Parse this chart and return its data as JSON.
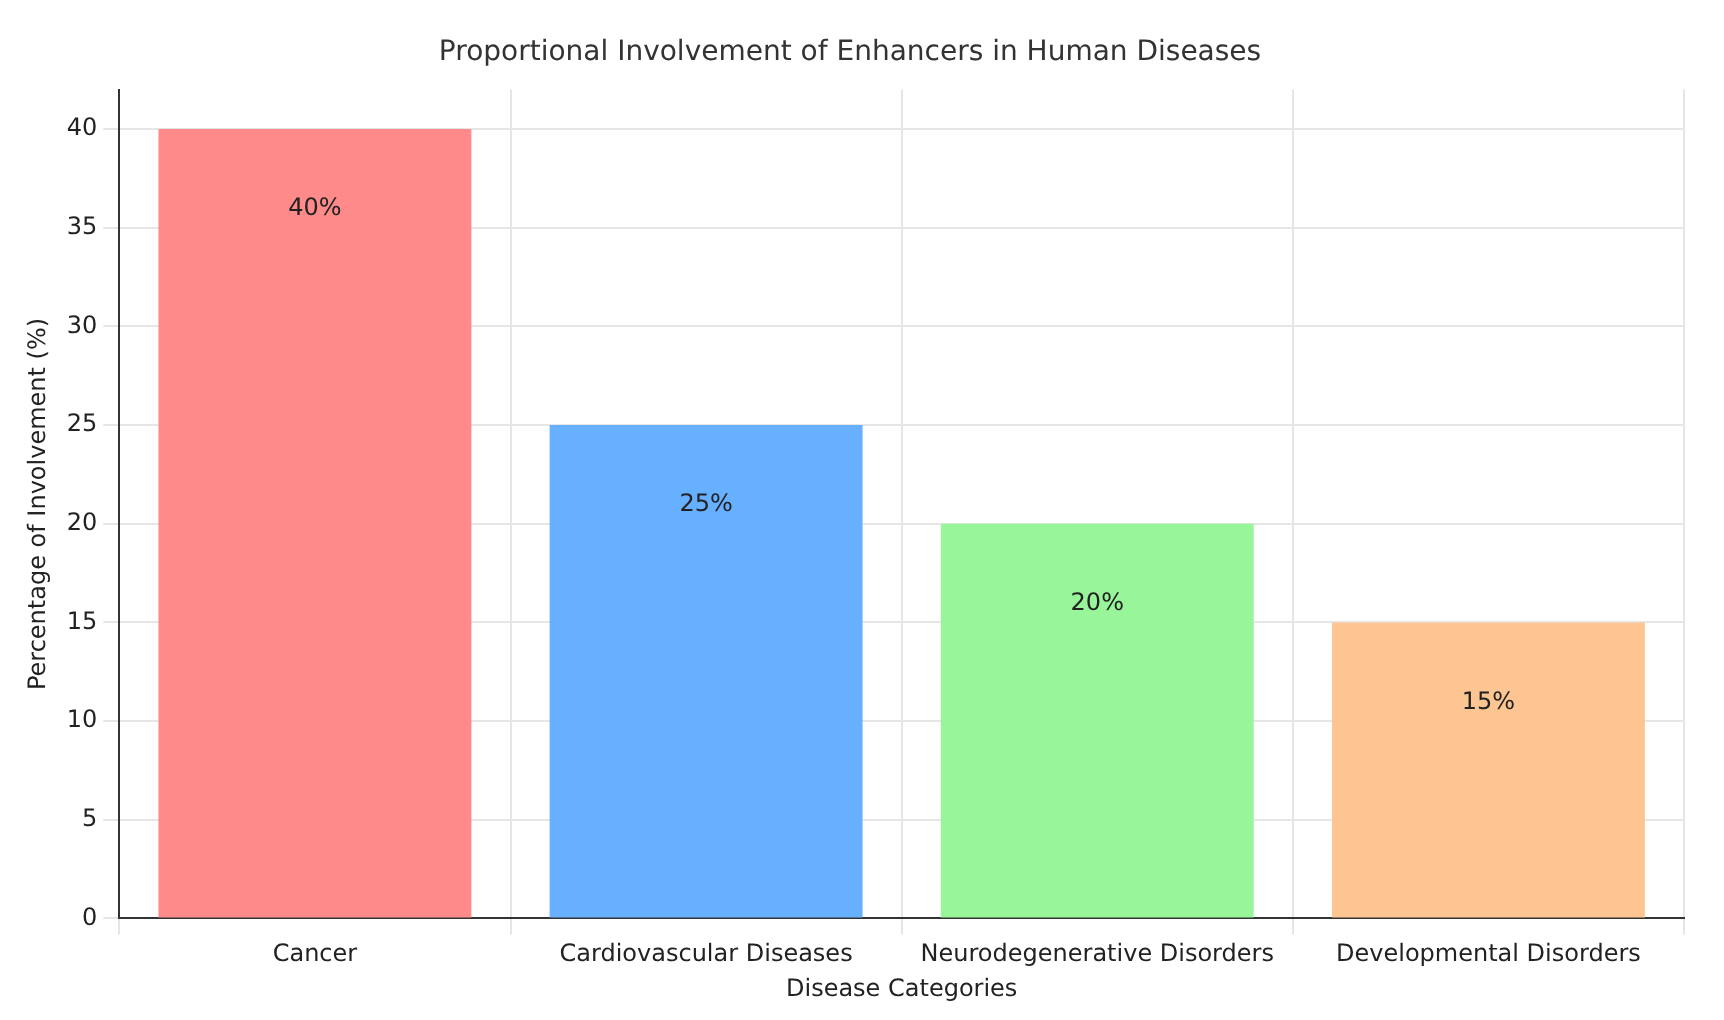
{
  "chart_data": {
    "type": "bar",
    "title": "Proportional Involvement of Enhancers in Human Diseases",
    "xlabel": "Disease Categories",
    "ylabel": "Percentage of Involvement (%)",
    "categories": [
      "Cancer",
      "Cardiovascular Diseases",
      "Neurodegenerative Disorders",
      "Developmental Disorders"
    ],
    "values": [
      40,
      25,
      20,
      15
    ],
    "colors": [
      "#ff8a8a",
      "#66b0ff",
      "#99f599",
      "#fcc591"
    ],
    "value_labels": [
      "40%",
      "25%",
      "20%",
      "15%"
    ],
    "ylim": [
      0,
      42
    ],
    "yticks": [
      0,
      5,
      10,
      15,
      20,
      25,
      30,
      35,
      40
    ],
    "grid": true
  }
}
